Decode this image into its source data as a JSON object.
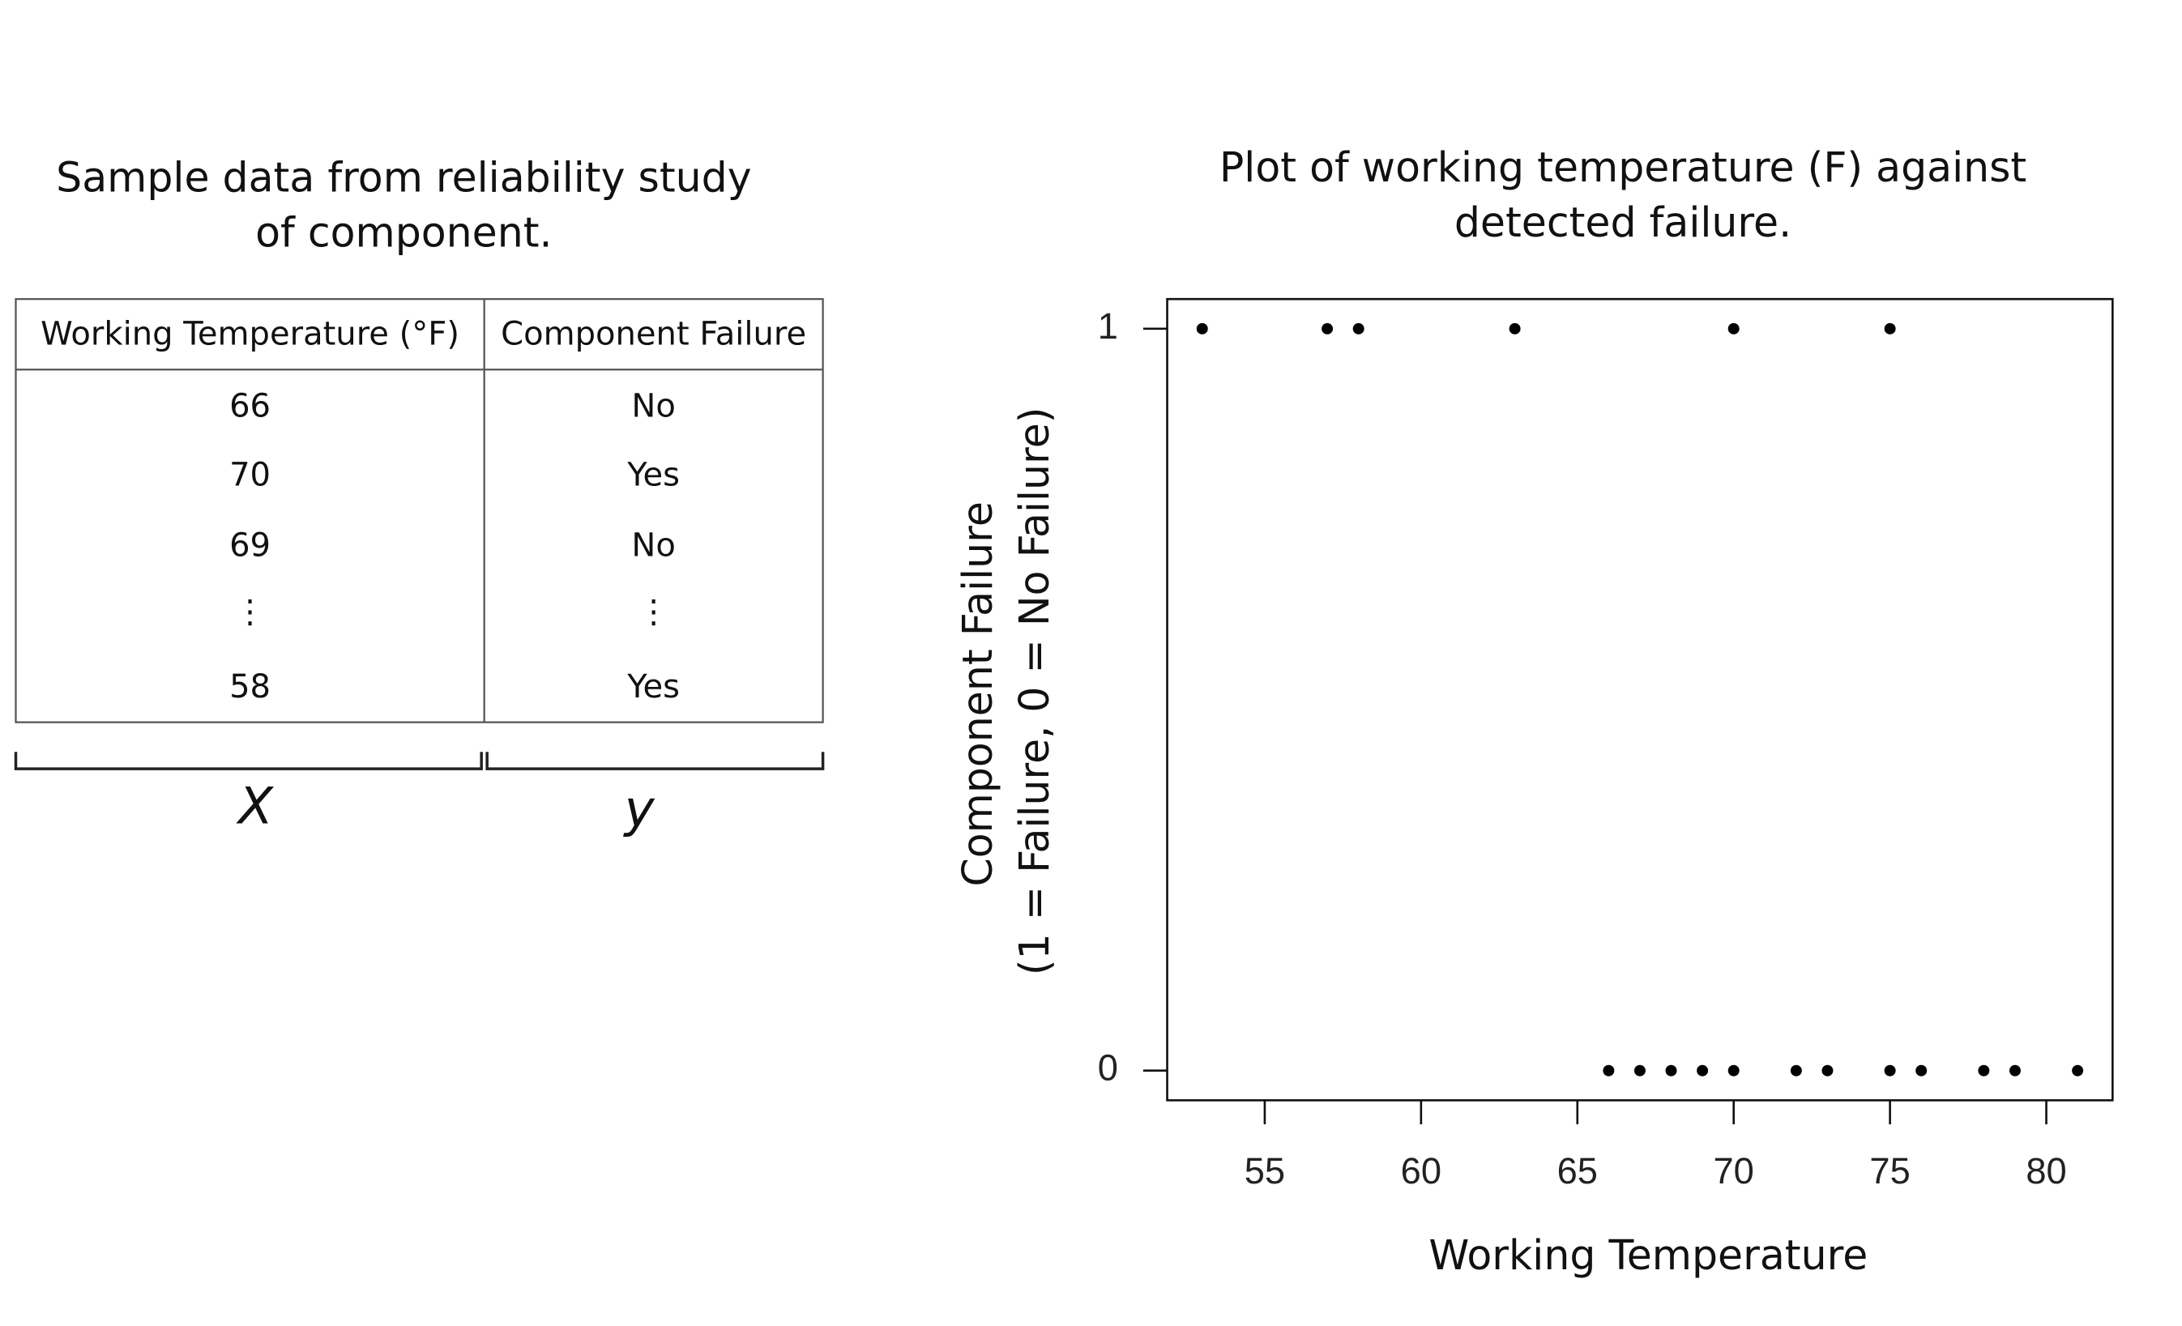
{
  "table": {
    "title": [
      "Sample data from reliability study",
      "of component."
    ],
    "header": [
      "Working Temperature (°F)",
      "Component Failure"
    ],
    "rows": [
      [
        "66",
        "No"
      ],
      [
        "70",
        "Yes"
      ],
      [
        "69",
        "No"
      ],
      [
        "⋮",
        "⋮"
      ],
      [
        "58",
        "Yes"
      ]
    ],
    "brackets": [
      "X",
      "y"
    ]
  },
  "chart_data": {
    "type": "scatter",
    "title": [
      "Plot of working temperature (F) against",
      "detected failure."
    ],
    "xlabel": "Working Temperature",
    "ylabel": [
      "Component Failure",
      "(1 = Failure, 0 = No Failure)"
    ],
    "x": [
      53,
      57,
      58,
      63,
      70,
      75,
      66,
      67,
      68,
      69,
      70,
      72,
      73,
      75,
      76,
      78,
      79,
      81
    ],
    "values": [
      1,
      1,
      1,
      1,
      1,
      1,
      0,
      0,
      0,
      0,
      0,
      0,
      0,
      0,
      0,
      0,
      0,
      0
    ],
    "color": "#000000",
    "xlim": [
      51.88,
      82.12
    ],
    "ylim": [
      -0.04,
      1.04
    ],
    "xticks": [
      55,
      60,
      65,
      70,
      75,
      80
    ],
    "yticks": [
      0,
      1
    ],
    "grid": false
  }
}
